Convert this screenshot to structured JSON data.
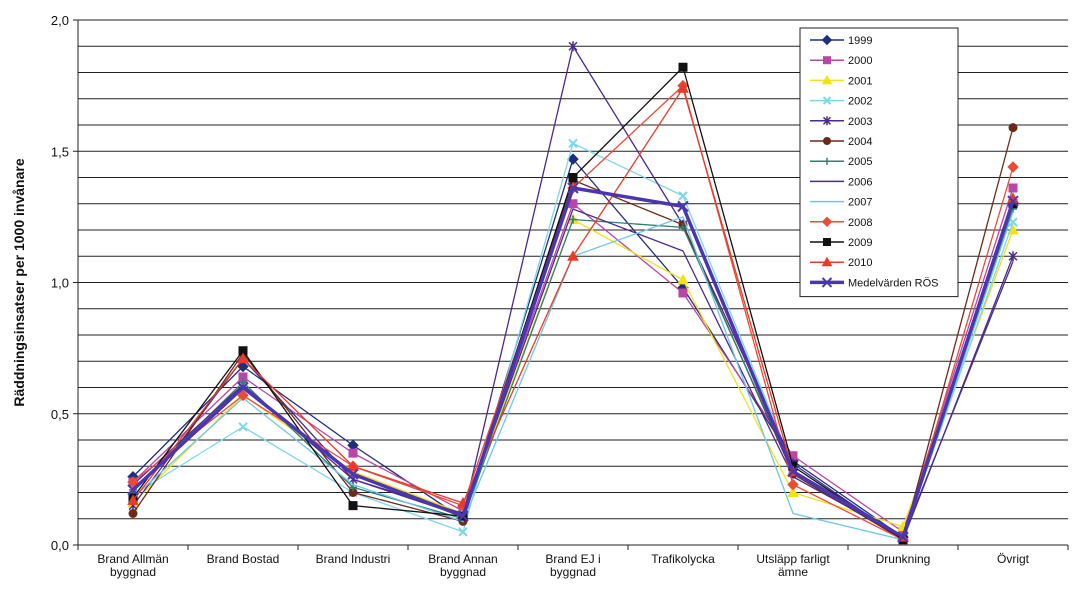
{
  "chart_data": {
    "type": "line",
    "title": "",
    "xlabel": "",
    "ylabel": "Räddningsinsatser per 1000 invånare",
    "ylim": [
      0,
      2.0
    ],
    "yticks": [
      "0,0",
      "0,5",
      "1,0",
      "1,5",
      "2,0"
    ],
    "grid": true,
    "legend_position": "top-right",
    "categories": [
      [
        "Brand Allmän",
        "byggnad"
      ],
      [
        "Brand Bostad"
      ],
      [
        "Brand Industri"
      ],
      [
        "Brand Annan",
        "byggnad"
      ],
      [
        "Brand EJ i",
        "byggnad"
      ],
      [
        "Trafikolycka"
      ],
      [
        "Utsläpp farligt",
        "ämne"
      ],
      [
        "Drunkning"
      ],
      [
        "Övrigt"
      ]
    ],
    "series": [
      {
        "name": "1999",
        "color": "#1f2f7a",
        "marker": "diamond",
        "values": [
          0.26,
          0.68,
          0.38,
          0.1,
          1.47,
          0.98,
          0.32,
          0.03,
          1.3
        ]
      },
      {
        "name": "2000",
        "color": "#b845a8",
        "marker": "square",
        "values": [
          0.24,
          0.64,
          0.35,
          0.13,
          1.3,
          0.96,
          0.34,
          0.05,
          1.36
        ]
      },
      {
        "name": "2001",
        "color": "#f2e21a",
        "marker": "triangle",
        "values": [
          0.16,
          0.57,
          0.28,
          0.12,
          1.24,
          1.01,
          0.2,
          0.07,
          1.2
        ]
      },
      {
        "name": "2002",
        "color": "#7ed6e8",
        "marker": "x",
        "values": [
          0.19,
          0.45,
          0.2,
          0.05,
          1.53,
          1.33,
          0.3,
          0.03,
          1.23
        ]
      },
      {
        "name": "2003",
        "color": "#4a2a8a",
        "marker": "star",
        "values": [
          0.15,
          0.71,
          0.25,
          0.11,
          1.9,
          1.22,
          0.31,
          0.02,
          1.1
        ]
      },
      {
        "name": "2004",
        "color": "#6b2a1a",
        "marker": "circle",
        "values": [
          0.12,
          0.73,
          0.2,
          0.09,
          1.39,
          1.22,
          0.27,
          0.02,
          1.59
        ]
      },
      {
        "name": "2005",
        "color": "#2f7f6f",
        "marker": "plus",
        "values": [
          0.21,
          0.62,
          0.22,
          0.1,
          1.24,
          1.21,
          0.28,
          0.03,
          1.28
        ]
      },
      {
        "name": "2006",
        "color": "#4b2b8e",
        "marker": "line",
        "values": [
          0.23,
          0.61,
          0.25,
          0.12,
          1.28,
          1.12,
          0.26,
          0.03,
          1.08
        ]
      },
      {
        "name": "2007",
        "color": "#6fc6e8",
        "marker": "line",
        "values": [
          0.18,
          0.56,
          0.23,
          0.09,
          1.1,
          1.25,
          0.12,
          0.02,
          1.27
        ]
      },
      {
        "name": "2008",
        "color": "#e84b3a",
        "marker": "diamond",
        "values": [
          0.24,
          0.57,
          0.3,
          0.15,
          1.36,
          1.75,
          0.23,
          0.02,
          1.44
        ]
      },
      {
        "name": "2009",
        "color": "#111111",
        "marker": "square",
        "values": [
          0.18,
          0.74,
          0.15,
          0.11,
          1.4,
          1.82,
          0.3,
          0.02,
          1.3
        ]
      },
      {
        "name": "2010",
        "color": "#e83b2a",
        "marker": "triangle",
        "values": [
          0.17,
          0.71,
          0.3,
          0.16,
          1.1,
          1.74,
          0.28,
          0.03,
          1.32
        ]
      },
      {
        "name": "Medelvärden RÖS",
        "color": "#4b36b0",
        "marker": "x",
        "thick": true,
        "values": [
          0.21,
          0.6,
          0.27,
          0.11,
          1.36,
          1.29,
          0.28,
          0.03,
          1.31
        ]
      }
    ]
  }
}
